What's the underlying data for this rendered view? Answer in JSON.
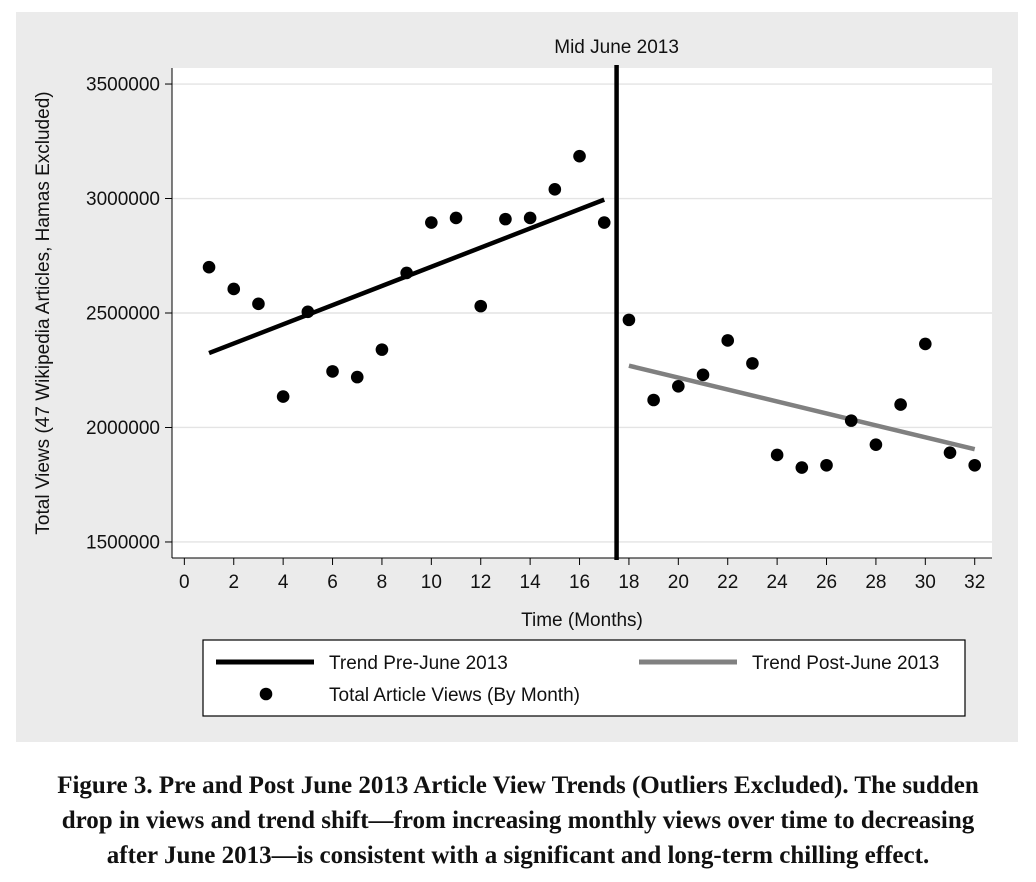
{
  "chart_data": {
    "type": "scatter",
    "title": "",
    "xlabel": "Time (Months)",
    "ylabel": "Total Views (47 Wikipedia Articles, Hamas Excluded)",
    "xlim": [
      -0.5,
      32.7
    ],
    "ylim": [
      1430000,
      3570000
    ],
    "x_ticks": [
      0,
      2,
      4,
      6,
      8,
      10,
      12,
      14,
      16,
      18,
      20,
      22,
      24,
      26,
      28,
      30,
      32
    ],
    "y_ticks": [
      1500000,
      2000000,
      2500000,
      3000000,
      3500000
    ],
    "x_tick_labels": [
      "0",
      "2",
      "4",
      "6",
      "8",
      "10",
      "12",
      "14",
      "16",
      "18",
      "20",
      "22",
      "24",
      "26",
      "28",
      "30",
      "32"
    ],
    "y_tick_labels": [
      "1500000",
      "2000000",
      "2500000",
      "3000000",
      "3500000"
    ],
    "grid": "horizontal",
    "series": [
      {
        "name": "Total Article Views (By Month)",
        "kind": "scatter",
        "color": "#000000",
        "x": [
          1,
          2,
          3,
          4,
          5,
          6,
          7,
          8,
          9,
          10,
          11,
          12,
          13,
          14,
          15,
          16,
          17,
          18,
          19,
          20,
          21,
          22,
          23,
          24,
          25,
          26,
          27,
          28,
          29,
          30,
          31,
          32
        ],
        "y": [
          2700000,
          2605000,
          2540000,
          2135000,
          2505000,
          2245000,
          2220000,
          2340000,
          2675000,
          2895000,
          2915000,
          2530000,
          2910000,
          2915000,
          3040000,
          3185000,
          2895000,
          2470000,
          2120000,
          2180000,
          2230000,
          2380000,
          2280000,
          1880000,
          1825000,
          1835000,
          2030000,
          1925000,
          2100000,
          2365000,
          1890000,
          1835000
        ]
      },
      {
        "name": "Trend Pre-June 2013",
        "kind": "line",
        "color": "#000000",
        "x": [
          1,
          17
        ],
        "y": [
          2325000,
          2995000
        ]
      },
      {
        "name": "Trend Post-June 2013",
        "kind": "line",
        "color": "#808080",
        "x": [
          18,
          32
        ],
        "y": [
          2270000,
          1905000
        ]
      }
    ],
    "annotations": [
      {
        "type": "vline",
        "x": 17.5,
        "label": "Mid June 2013",
        "color": "#000000"
      }
    ],
    "legend": {
      "placement": "bottom",
      "items": [
        {
          "label": "Trend Pre-June 2013",
          "kind": "line",
          "color": "#000000"
        },
        {
          "label": "Trend Post-June 2013",
          "kind": "line",
          "color": "#808080"
        },
        {
          "label": "Total Article Views (By Month)",
          "kind": "marker",
          "color": "#000000"
        }
      ]
    }
  },
  "caption": {
    "lines": [
      "Figure 3. Pre and Post June 2013 Article View Trends (Outliers Excluded). The sudden",
      "drop in views and trend shift—from increasing monthly views over time to decreasing",
      "after June 2013—is consistent with a significant and long-term chilling effect."
    ]
  }
}
